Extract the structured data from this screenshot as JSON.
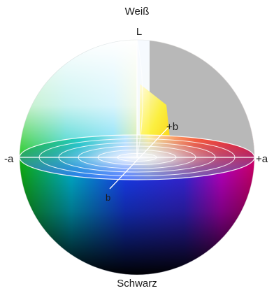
{
  "labels": {
    "top": "Weiß",
    "l_axis": "L",
    "bottom": "Schwarz",
    "minus_a": "-a",
    "plus_a": "+a",
    "plus_b": "+b",
    "minus_b": "b"
  },
  "colors": {
    "white_top": "#ffffff",
    "cutaway_gray": "#b8b8b8",
    "yellow": "#ffe600",
    "red": "#e8001c",
    "magenta": "#c000c8",
    "blue": "#1a3cff",
    "cyan": "#00c8f0",
    "green": "#19c819",
    "black": "#000000"
  }
}
